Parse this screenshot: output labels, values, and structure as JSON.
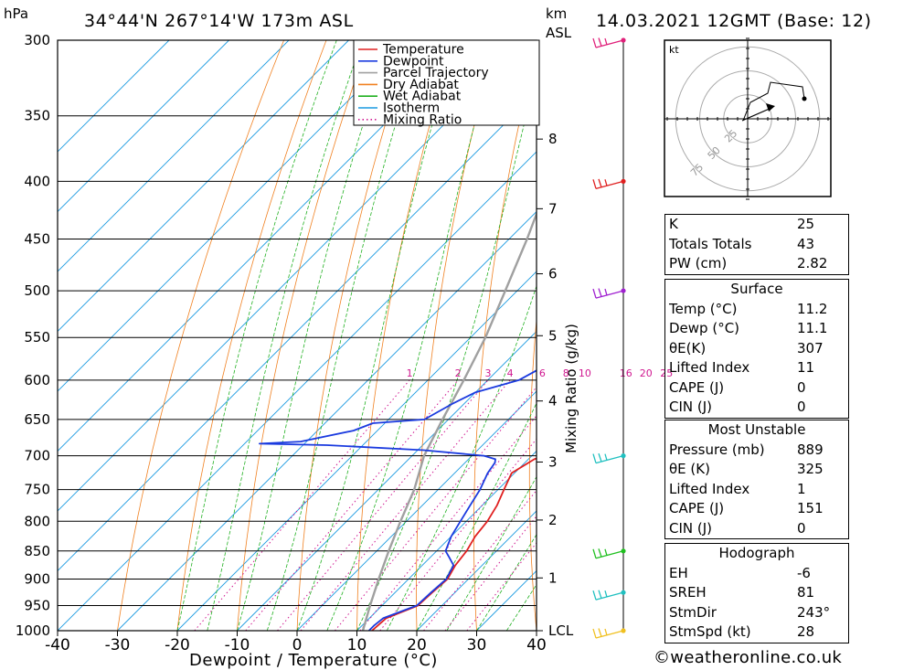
{
  "header": {
    "location": "34°44'N 267°14'W 173m ASL",
    "date": "14.03.2021 12GMT (Base: 12)",
    "left_unit": "hPa",
    "right_unit_top": "km",
    "right_unit_bottom": "ASL"
  },
  "legend": [
    {
      "label": "Temperature",
      "color": "#e02020",
      "style": "solid"
    },
    {
      "label": "Dewpoint",
      "color": "#1a3adf",
      "style": "solid"
    },
    {
      "label": "Parcel Trajectory",
      "color": "#a0a0a0",
      "style": "solid"
    },
    {
      "label": "Dry Adiabat",
      "color": "#f08020",
      "style": "solid"
    },
    {
      "label": "Wet Adiabat",
      "color": "#20b020",
      "style": "solid"
    },
    {
      "label": "Isotherm",
      "color": "#1a9ae0",
      "style": "solid"
    },
    {
      "label": "Mixing Ratio",
      "color": "#d01890",
      "style": "dotted"
    }
  ],
  "chart_data": {
    "type": "line",
    "title": "",
    "xlabel": "Dewpoint / Temperature (°C)",
    "ylabel": "hPa",
    "xlim": [
      -40,
      40
    ],
    "ylim": [
      1000,
      300
    ],
    "y_scale": "log",
    "xticks": [
      "-40",
      "-30",
      "-20",
      "-10",
      "0",
      "10",
      "20",
      "30",
      "40"
    ],
    "yticks": [
      "300",
      "350",
      "400",
      "450",
      "500",
      "550",
      "600",
      "650",
      "700",
      "750",
      "800",
      "850",
      "900",
      "950",
      "1000"
    ],
    "km_labels": [
      {
        "km": "8",
        "p": 367
      },
      {
        "km": "7",
        "p": 423
      },
      {
        "km": "6",
        "p": 483
      },
      {
        "km": "5",
        "p": 548
      },
      {
        "km": "4",
        "p": 626
      },
      {
        "km": "3",
        "p": 709
      },
      {
        "km": "2",
        "p": 798
      },
      {
        "km": "1",
        "p": 898
      },
      {
        "km": "LCL",
        "p": 1000
      }
    ],
    "mixing_ratio_label": "Mixing Ratio (g/kg)",
    "mixing_ratio_values": [
      "1",
      "2",
      "3",
      "4",
      "6",
      "8",
      "10",
      "16",
      "20",
      "25"
    ],
    "temperature": [
      [
        1000,
        12.5
      ],
      [
        975,
        12.8
      ],
      [
        950,
        16
      ],
      [
        925,
        16.2
      ],
      [
        900,
        16.5
      ],
      [
        875,
        15.5
      ],
      [
        850,
        15
      ],
      [
        825,
        14
      ],
      [
        800,
        13.5
      ],
      [
        775,
        12.5
      ],
      [
        750,
        11
      ],
      [
        725,
        9.5
      ],
      [
        705,
        11
      ],
      [
        695,
        13
      ],
      [
        690,
        16
      ],
      [
        680,
        17
      ],
      [
        670,
        17.5
      ],
      [
        660,
        19
      ],
      [
        650,
        21.5
      ],
      [
        640,
        21
      ],
      [
        620,
        19.5
      ],
      [
        600,
        18
      ],
      [
        580,
        16
      ],
      [
        560,
        14
      ],
      [
        540,
        11.5
      ],
      [
        520,
        9
      ],
      [
        500,
        7
      ],
      [
        480,
        5
      ],
      [
        460,
        3.5
      ],
      [
        440,
        1.5
      ],
      [
        420,
        -0.5
      ],
      [
        405,
        -2
      ],
      [
        400,
        -2.5
      ],
      [
        380,
        -6
      ],
      [
        360,
        -9.5
      ],
      [
        355,
        -11
      ],
      [
        350,
        -11
      ],
      [
        340,
        -11.5
      ],
      [
        300,
        -20
      ]
    ],
    "dewpoint": [
      [
        1000,
        12
      ],
      [
        990,
        12
      ],
      [
        975,
        12.3
      ],
      [
        950,
        15.8
      ],
      [
        925,
        16
      ],
      [
        900,
        16.3
      ],
      [
        875,
        15.2
      ],
      [
        860,
        13
      ],
      [
        850,
        11.5
      ],
      [
        825,
        10
      ],
      [
        800,
        9
      ],
      [
        775,
        8
      ],
      [
        750,
        7
      ],
      [
        725,
        5.5
      ],
      [
        710,
        5
      ],
      [
        705,
        4.5
      ],
      [
        700,
        2
      ],
      [
        692,
        -9
      ],
      [
        685,
        -26
      ],
      [
        683,
        -37.5
      ],
      [
        680,
        -31
      ],
      [
        665,
        -24
      ],
      [
        655,
        -22
      ],
      [
        650,
        -14
      ],
      [
        630,
        -12
      ],
      [
        615,
        -10
      ],
      [
        600,
        -4.8
      ],
      [
        580,
        -2.5
      ],
      [
        560,
        -1
      ],
      [
        540,
        1
      ],
      [
        520,
        3
      ],
      [
        500,
        4
      ],
      [
        490,
        2.5
      ],
      [
        480,
        1
      ],
      [
        470,
        -1
      ],
      [
        460,
        -0.5
      ],
      [
        450,
        -2
      ],
      [
        440,
        -4
      ],
      [
        430,
        -8
      ],
      [
        420,
        -12
      ],
      [
        410,
        -13.5
      ],
      [
        400,
        -14.5
      ],
      [
        380,
        -14
      ],
      [
        365,
        -14.5
      ],
      [
        350,
        -14
      ],
      [
        340,
        -16
      ],
      [
        330,
        -18
      ],
      [
        300,
        -23
      ]
    ],
    "parcel": [
      [
        1000,
        11
      ],
      [
        950,
        8
      ],
      [
        900,
        5
      ],
      [
        850,
        2
      ],
      [
        800,
        -1
      ],
      [
        750,
        -4
      ],
      [
        700,
        -8
      ],
      [
        650,
        -11
      ],
      [
        600,
        -14
      ],
      [
        550,
        -17.5
      ],
      [
        500,
        -22
      ],
      [
        450,
        -27
      ],
      [
        400,
        -33
      ],
      [
        350,
        -40
      ],
      [
        300,
        -48
      ]
    ],
    "wind_barbs": [
      {
        "p": 300,
        "color": "#e0207a"
      },
      {
        "p": 400,
        "color": "#e02020"
      },
      {
        "p": 500,
        "color": "#a020d0"
      },
      {
        "p": 700,
        "color": "#20c0c0"
      },
      {
        "p": 850,
        "color": "#20c020"
      },
      {
        "p": 925,
        "color": "#20c0c0"
      },
      {
        "p": 1000,
        "color": "#f0c020"
      }
    ]
  },
  "hodograph": {
    "unit": "kt",
    "rings": [
      "25",
      "50",
      "75"
    ]
  },
  "indices": [
    {
      "label": "K",
      "value": "25"
    },
    {
      "label": "Totals Totals",
      "value": "43"
    },
    {
      "label": "PW (cm)",
      "value": "2.82"
    }
  ],
  "surface": {
    "title": "Surface",
    "rows": [
      {
        "label": "Temp (°C)",
        "value": "11.2"
      },
      {
        "label": "Dewp (°C)",
        "value": "11.1"
      },
      {
        "label": "θE(K)",
        "value": "307"
      },
      {
        "label": "Lifted Index",
        "value": "11"
      },
      {
        "label": "CAPE (J)",
        "value": "0"
      },
      {
        "label": "CIN (J)",
        "value": "0"
      }
    ]
  },
  "most_unstable": {
    "title": "Most Unstable",
    "rows": [
      {
        "label": "Pressure (mb)",
        "value": "889"
      },
      {
        "label": "θE (K)",
        "value": "325"
      },
      {
        "label": "Lifted Index",
        "value": "1"
      },
      {
        "label": "CAPE (J)",
        "value": "151"
      },
      {
        "label": "CIN (J)",
        "value": "0"
      }
    ]
  },
  "hodo_table": {
    "title": "Hodograph",
    "rows": [
      {
        "label": "EH",
        "value": "-6"
      },
      {
        "label": "SREH",
        "value": "81"
      },
      {
        "label": "StmDir",
        "value": "243°"
      },
      {
        "label": "StmSpd (kt)",
        "value": "28"
      }
    ]
  },
  "footer": "©weatheronline.co.uk"
}
